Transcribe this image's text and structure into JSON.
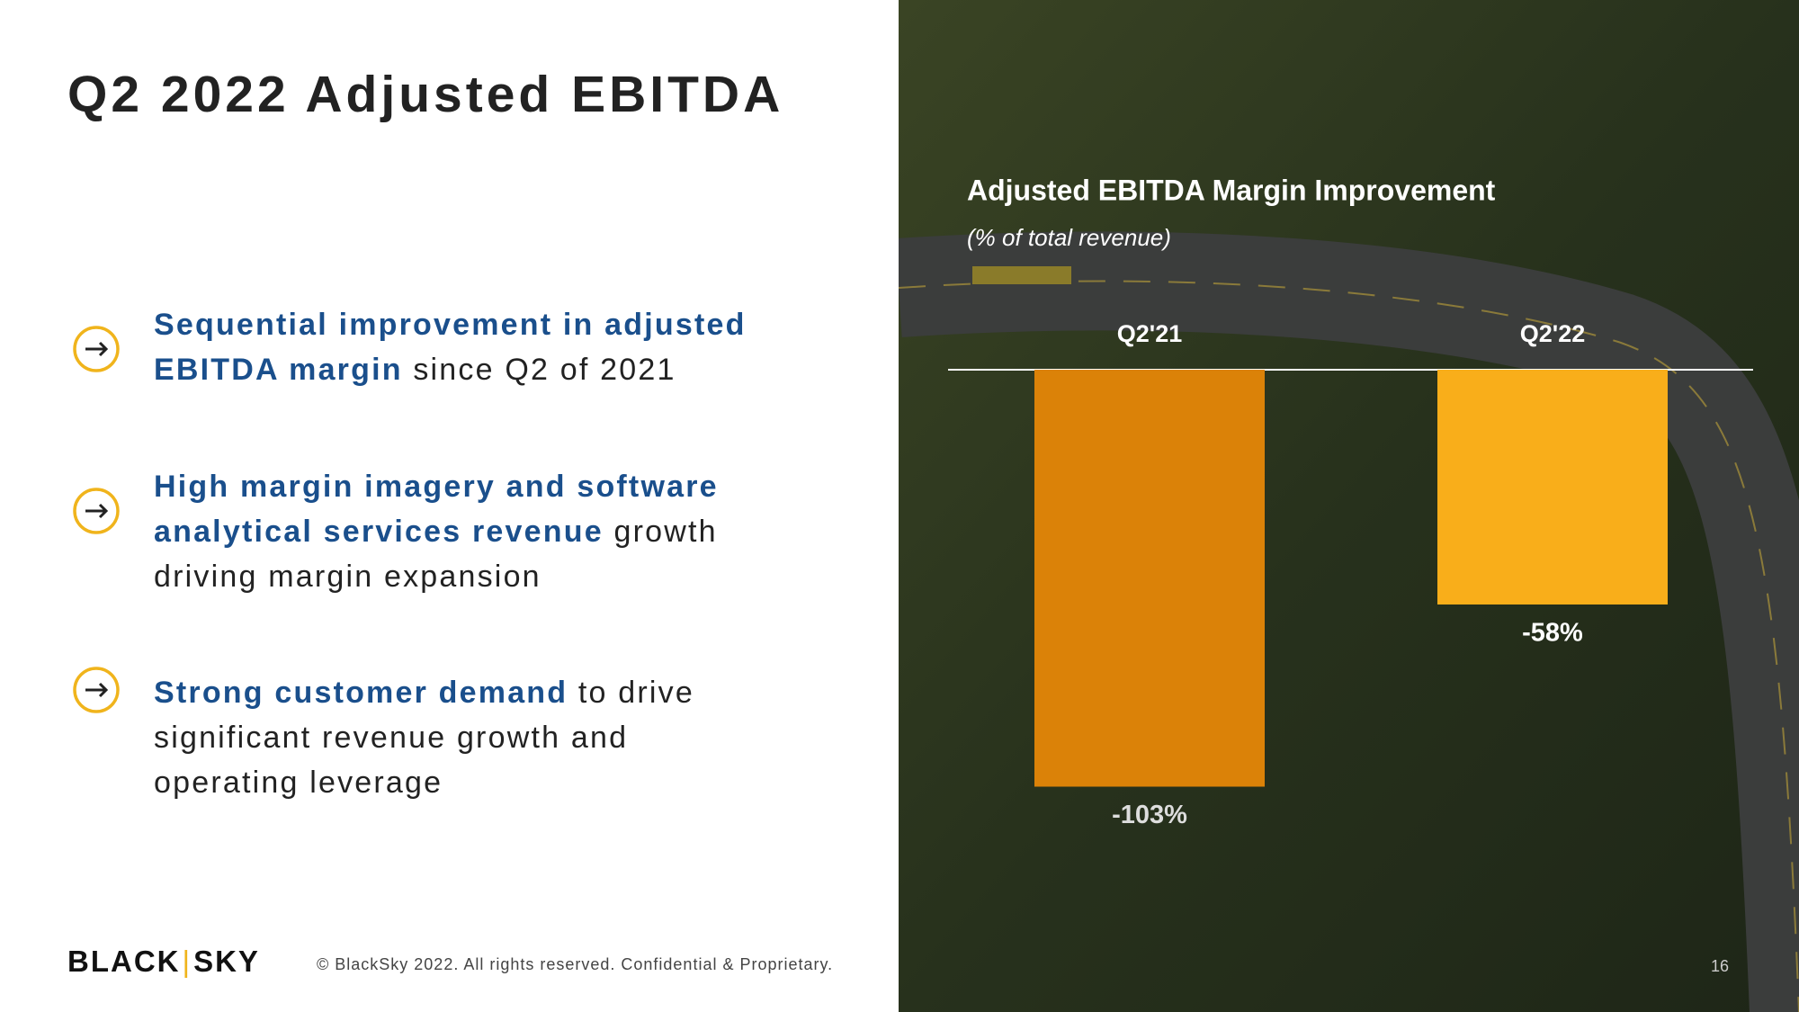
{
  "header": {
    "title": "Q2 2022 Adjusted EBITDA"
  },
  "bullets": [
    {
      "bold": "Sequential improvement in adjusted EBITDA margin",
      "text": " since Q2 of 2021"
    },
    {
      "bold": "High margin imagery and software analytical services revenue",
      "text": " growth driving margin expansion"
    },
    {
      "bold": "Strong customer demand",
      "text": " to drive significant revenue growth and operating leverage"
    }
  ],
  "chart_data": {
    "type": "bar",
    "title": "Adjusted EBITDA Margin Improvement",
    "subtitle": "(% of total revenue)",
    "categories": [
      "Q2'21",
      "Q2'22"
    ],
    "values": [
      -103,
      -58
    ],
    "value_labels": [
      "-103%",
      "-58%"
    ],
    "colors": [
      "#db8208",
      "#f9ae1a"
    ]
  },
  "footer": {
    "logo": [
      "BLACK",
      "SKY"
    ],
    "text": "© BlackSky 2022. All rights reserved. Confidential & Proprietary.",
    "page": "16"
  }
}
